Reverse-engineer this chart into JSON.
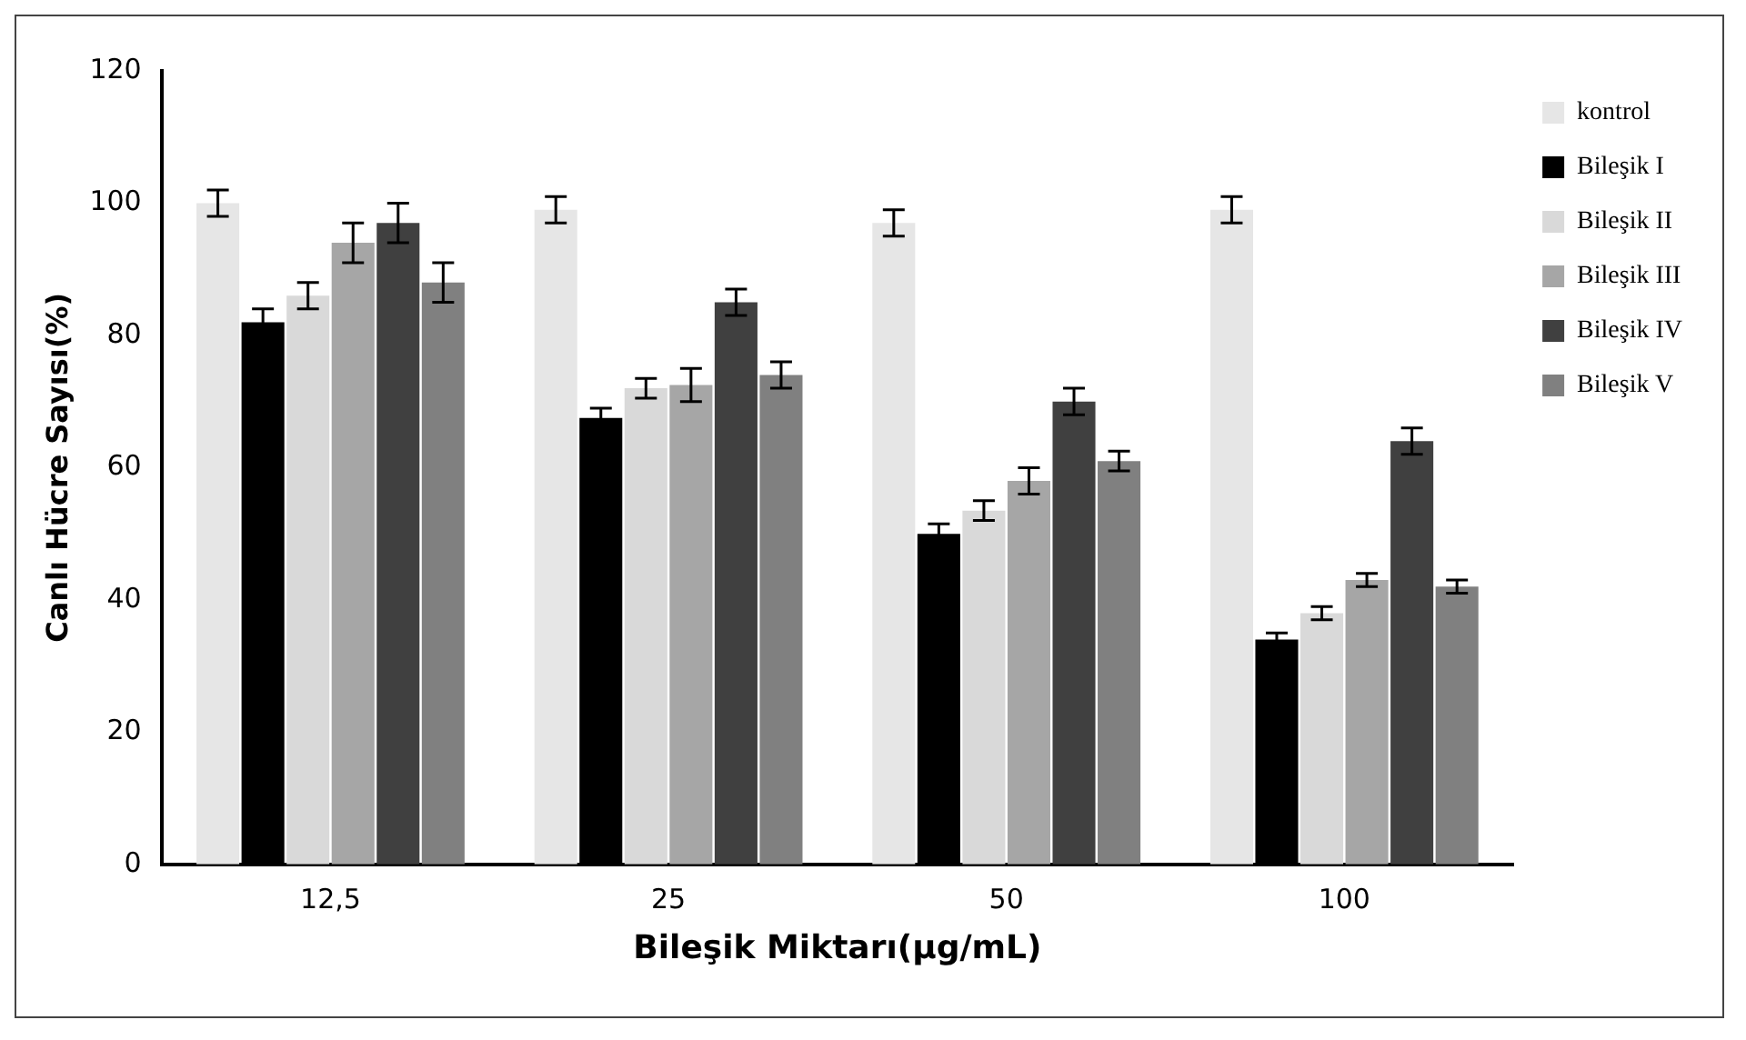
{
  "chart_data": {
    "type": "bar",
    "xlabel": "Bileşik Miktarı(µg/mL)",
    "ylabel": "Canlı Hücre Sayısı(%)",
    "categories": [
      "12,5",
      "25",
      "50",
      "100"
    ],
    "series": [
      {
        "name": "kontrol",
        "color": "#e6e6e6",
        "values": [
          100,
          99,
          97,
          99
        ],
        "errors": [
          2,
          2,
          2,
          2
        ]
      },
      {
        "name": "Bileşik I",
        "color": "#000000",
        "values": [
          82,
          67.5,
          50,
          34
        ],
        "errors": [
          2,
          1.5,
          1.5,
          1
        ]
      },
      {
        "name": "Bileşik II",
        "color": "#d9d9d9",
        "values": [
          86,
          72,
          53.5,
          38
        ],
        "errors": [
          2,
          1.5,
          1.5,
          1
        ]
      },
      {
        "name": "Bileşik III",
        "color": "#a6a6a6",
        "values": [
          94,
          72.5,
          58,
          43
        ],
        "errors": [
          3,
          2.5,
          2,
          1
        ]
      },
      {
        "name": "Bileşik IV",
        "color": "#404040",
        "values": [
          97,
          85,
          70,
          64
        ],
        "errors": [
          3,
          2,
          2,
          2
        ]
      },
      {
        "name": "Bileşik V",
        "color": "#808080",
        "values": [
          88,
          74,
          61,
          42
        ],
        "errors": [
          3,
          2,
          1.5,
          1
        ]
      }
    ],
    "ylim": [
      0,
      120
    ],
    "yticks": [
      0,
      20,
      40,
      60,
      80,
      100,
      120
    ],
    "grid": false,
    "legend": "top right"
  }
}
